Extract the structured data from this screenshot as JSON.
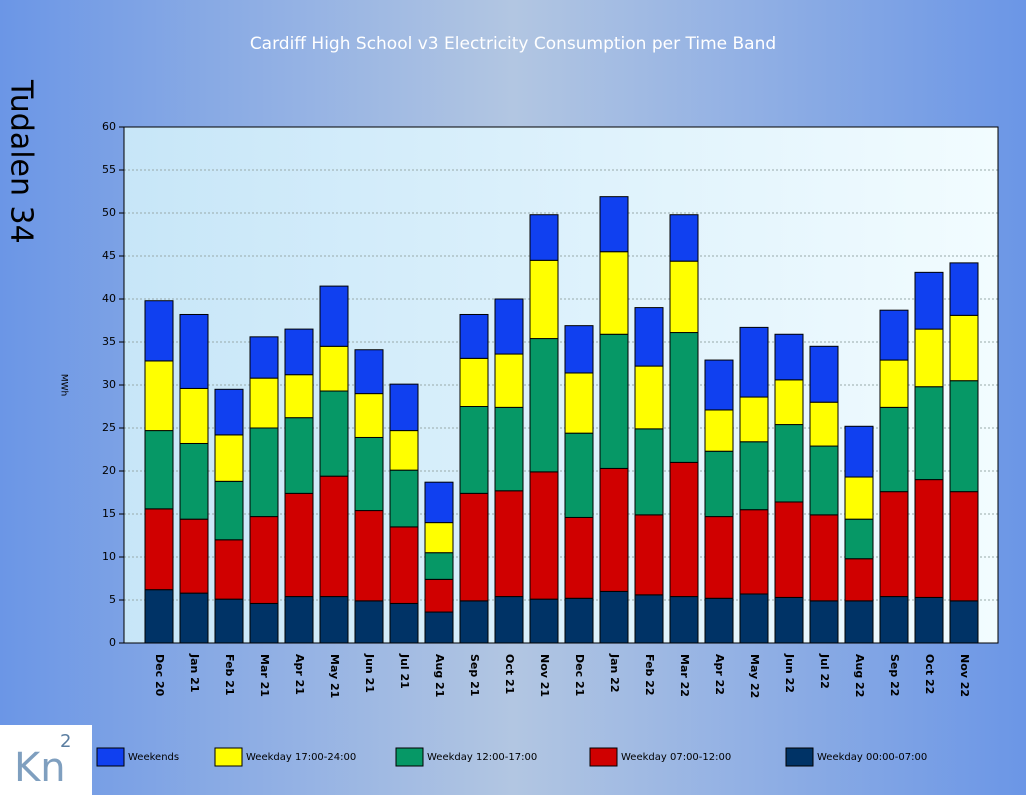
{
  "page_label": "Tudalen 34",
  "logo": {
    "text": "Kn",
    "superscript": "2"
  },
  "chart_data": {
    "type": "stacked_bar",
    "title": "Cardiff High School v3 Electricity Consumption per Time Band",
    "y_label": "MWh",
    "categories": [
      "Dec 20",
      "Jan 21",
      "Feb 21",
      "Mar 21",
      "Apr 21",
      "May 21",
      "Jun 21",
      "Jul 21",
      "Aug 21",
      "Sep 21",
      "Oct 21",
      "Nov 21",
      "Dec 21",
      "Jan 22",
      "Feb 22",
      "Mar 22",
      "Apr 22",
      "May 22",
      "Jun 22",
      "Jul 22",
      "Aug 22",
      "Sep 22",
      "Oct 22",
      "Nov 22"
    ],
    "series": [
      {
        "name": "Weekends",
        "color": "#1040f0",
        "values": [
          7.0,
          8.6,
          5.3,
          4.8,
          5.3,
          7.0,
          5.1,
          5.4,
          4.7,
          5.1,
          6.4,
          5.3,
          5.5,
          6.4,
          6.8,
          5.4,
          5.8,
          8.1,
          5.3,
          6.5,
          5.9,
          5.8,
          6.6,
          6.1
        ]
      },
      {
        "name": "Weekday 17:00-24:00",
        "color": "#ffff00",
        "values": [
          8.1,
          6.4,
          5.4,
          5.8,
          5.0,
          5.2,
          5.1,
          4.6,
          3.5,
          5.6,
          6.2,
          9.1,
          7.0,
          9.6,
          7.3,
          8.3,
          4.8,
          5.2,
          5.2,
          5.1,
          4.9,
          5.5,
          6.7,
          7.6
        ]
      },
      {
        "name": "Weekday 12:00-17:00",
        "color": "#069866",
        "values": [
          9.1,
          8.8,
          6.8,
          10.3,
          8.8,
          9.9,
          8.5,
          6.6,
          3.1,
          10.1,
          9.7,
          15.5,
          9.8,
          15.6,
          10.0,
          15.1,
          7.6,
          7.9,
          9.0,
          8.0,
          4.6,
          9.8,
          10.8,
          12.9
        ]
      },
      {
        "name": "Weekday 07:00-12:00",
        "color": "#d00000",
        "values": [
          9.4,
          8.6,
          6.9,
          10.1,
          12.0,
          14.0,
          10.5,
          8.9,
          3.8,
          12.5,
          12.3,
          14.8,
          9.4,
          14.3,
          9.3,
          15.6,
          9.5,
          9.8,
          11.1,
          10.0,
          4.9,
          12.2,
          13.7,
          12.7
        ]
      },
      {
        "name": "Weekday 00:00-07:00",
        "color": "#003366",
        "values": [
          6.2,
          5.8,
          5.1,
          4.6,
          5.4,
          5.4,
          4.9,
          4.6,
          3.6,
          4.9,
          5.4,
          5.1,
          5.2,
          6.0,
          5.6,
          5.4,
          5.2,
          5.7,
          5.3,
          4.9,
          4.9,
          5.4,
          5.3,
          4.9
        ]
      }
    ],
    "ylim": [
      0,
      60
    ],
    "yticks": [
      0,
      5,
      10,
      15,
      20,
      25,
      30,
      35,
      40,
      45,
      50,
      55,
      60
    ],
    "grid": true,
    "legend": "bottom"
  }
}
